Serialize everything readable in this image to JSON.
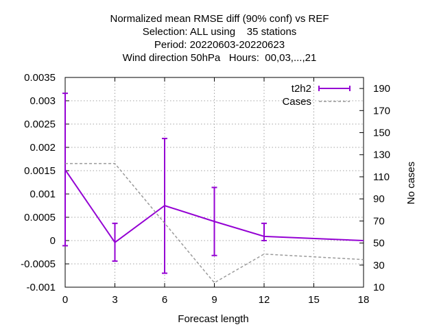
{
  "chart_data": {
    "type": "line",
    "title_lines": [
      "Normalized mean RMSE diff (90% conf) vs REF",
      "Selection: ALL using    35 stations",
      "Period: 20220603-20220623",
      "Wind direction 50hPa   Hours:  00,03,...,21"
    ],
    "xlabel": "Forecast length",
    "ylabel": "",
    "y2label": "No cases",
    "x": [
      0,
      3,
      6,
      9,
      12,
      15,
      18
    ],
    "xlim": [
      0,
      18
    ],
    "ylim": [
      -0.001,
      0.0035
    ],
    "y2lim": [
      10,
      200
    ],
    "xticks": [
      "0",
      "3",
      "6",
      "9",
      "12",
      "15",
      "18"
    ],
    "yticks": [
      {
        "v": -0.001,
        "label": "-0.001"
      },
      {
        "v": -0.0005,
        "label": "-0.0005"
      },
      {
        "v": 0,
        "label": "0"
      },
      {
        "v": 0.0005,
        "label": "0.0005"
      },
      {
        "v": 0.001,
        "label": "0.001"
      },
      {
        "v": 0.0015,
        "label": "0.0015"
      },
      {
        "v": 0.002,
        "label": "0.002"
      },
      {
        "v": 0.0025,
        "label": "0.0025"
      },
      {
        "v": 0.003,
        "label": "0.003"
      },
      {
        "v": 0.0035,
        "label": "0.0035"
      }
    ],
    "y2ticks": [
      "10",
      "30",
      "50",
      "70",
      "90",
      "110",
      "130",
      "150",
      "170",
      "190"
    ],
    "grid": true,
    "legend_position": "top-right",
    "series": [
      {
        "name": "t2h2",
        "axis": "y1",
        "color": "#9400d3",
        "x": [
          0,
          3,
          6,
          9,
          12,
          18
        ],
        "values": [
          0.00152,
          -4e-05,
          0.00075,
          0.00041,
          9e-05,
          0.0
        ],
        "err_low": [
          -0.00011,
          -0.00044,
          -0.0007,
          -0.00032,
          0.0,
          0.0
        ],
        "err_high": [
          0.00316,
          0.00037,
          0.00219,
          0.00114,
          0.00037,
          0.0
        ]
      },
      {
        "name": "Cases",
        "axis": "y2",
        "color": "#999999",
        "dashed": true,
        "x": [
          0,
          3,
          9,
          12,
          18
        ],
        "values": [
          122,
          122,
          14,
          40,
          35
        ]
      }
    ]
  }
}
